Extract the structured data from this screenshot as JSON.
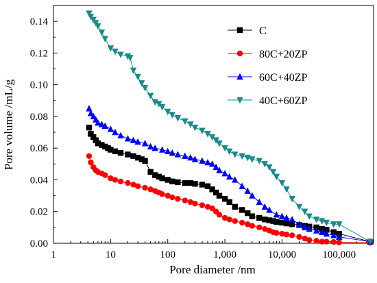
{
  "chart_data": {
    "type": "scatter",
    "title": "",
    "xlabel": "Pore diameter /nm",
    "ylabel": "Pore volume /mL/g",
    "xscale": "log",
    "xlim": [
      1,
      400000
    ],
    "ylim": [
      0,
      0.15
    ],
    "xticks": [
      1,
      10,
      100,
      1000,
      10000,
      100000
    ],
    "xtick_labels": [
      "1",
      "10",
      "100",
      "1,000",
      "10,000",
      "100,000"
    ],
    "yticks": [
      0.0,
      0.02,
      0.04,
      0.06,
      0.08,
      0.1,
      0.12,
      0.14
    ],
    "ytick_labels": [
      "0.00",
      "0.02",
      "0.04",
      "0.06",
      "0.08",
      "0.10",
      "0.12",
      "0.14"
    ],
    "grid": false,
    "legend_position": "top-right",
    "series": [
      {
        "name": "C",
        "color": "#000000",
        "marker": "square",
        "x": [
          4.2,
          4.5,
          5,
          5.5,
          6,
          7,
          8,
          9,
          10,
          12,
          15,
          20,
          25,
          30,
          35,
          40,
          50,
          60,
          70,
          80,
          100,
          120,
          150,
          200,
          250,
          300,
          400,
          500,
          600,
          700,
          800,
          1000,
          1200,
          1500,
          2000,
          2500,
          3000,
          4000,
          5000,
          6000,
          7000,
          8000,
          10000,
          12000,
          15000,
          20000,
          25000,
          30000,
          40000,
          50000,
          60000,
          80000,
          100000,
          350000
        ],
        "y": [
          0.073,
          0.069,
          0.067,
          0.065,
          0.063,
          0.062,
          0.061,
          0.06,
          0.059,
          0.058,
          0.057,
          0.056,
          0.055,
          0.054,
          0.053,
          0.052,
          0.045,
          0.043,
          0.042,
          0.041,
          0.04,
          0.039,
          0.0385,
          0.038,
          0.038,
          0.0375,
          0.037,
          0.036,
          0.034,
          0.032,
          0.03,
          0.028,
          0.026,
          0.023,
          0.021,
          0.019,
          0.017,
          0.016,
          0.015,
          0.0145,
          0.014,
          0.0135,
          0.013,
          0.0125,
          0.012,
          0.0115,
          0.011,
          0.0105,
          0.01,
          0.009,
          0.0085,
          0.007,
          0.006,
          0.001
        ]
      },
      {
        "name": "80C+20ZP",
        "color": "#ff0000",
        "marker": "circle",
        "x": [
          4.2,
          4.5,
          5,
          5.5,
          6,
          7,
          8,
          10,
          12,
          15,
          20,
          25,
          30,
          40,
          50,
          60,
          70,
          80,
          100,
          120,
          150,
          200,
          250,
          300,
          400,
          500,
          600,
          700,
          800,
          1000,
          1200,
          1500,
          2000,
          2500,
          3000,
          4000,
          5000,
          6000,
          7000,
          8000,
          10000,
          12000,
          15000,
          20000,
          25000,
          30000,
          40000,
          50000,
          60000,
          80000,
          100000,
          350000
        ],
        "y": [
          0.055,
          0.051,
          0.048,
          0.046,
          0.045,
          0.044,
          0.043,
          0.041,
          0.04,
          0.039,
          0.038,
          0.037,
          0.036,
          0.035,
          0.034,
          0.033,
          0.032,
          0.031,
          0.03,
          0.029,
          0.028,
          0.027,
          0.026,
          0.025,
          0.024,
          0.023,
          0.022,
          0.02,
          0.018,
          0.016,
          0.015,
          0.014,
          0.013,
          0.012,
          0.011,
          0.01,
          0.009,
          0.008,
          0.007,
          0.0065,
          0.006,
          0.0055,
          0.005,
          0.004,
          0.003,
          0.002,
          0.0015,
          0.001,
          0.001,
          0.0008,
          0.0005,
          0.0003
        ]
      },
      {
        "name": "60C+40ZP",
        "color": "#0000ff",
        "marker": "triangle-up",
        "x": [
          4.2,
          4.5,
          5,
          5.5,
          6,
          7,
          8,
          10,
          12,
          15,
          20,
          25,
          30,
          40,
          50,
          60,
          80,
          100,
          120,
          150,
          200,
          250,
          300,
          400,
          500,
          600,
          700,
          800,
          1000,
          1200,
          1500,
          2000,
          2500,
          3000,
          4000,
          5000,
          6000,
          8000,
          10000,
          12000,
          15000,
          20000,
          25000,
          30000,
          40000,
          50000,
          60000,
          80000,
          100000,
          350000
        ],
        "y": [
          0.085,
          0.082,
          0.08,
          0.078,
          0.076,
          0.075,
          0.074,
          0.072,
          0.07,
          0.068,
          0.066,
          0.065,
          0.064,
          0.063,
          0.061,
          0.06,
          0.059,
          0.058,
          0.057,
          0.056,
          0.055,
          0.054,
          0.053,
          0.052,
          0.051,
          0.05,
          0.048,
          0.046,
          0.044,
          0.042,
          0.04,
          0.036,
          0.033,
          0.03,
          0.026,
          0.023,
          0.021,
          0.018,
          0.017,
          0.016,
          0.015,
          0.012,
          0.01,
          0.009,
          0.008,
          0.007,
          0.006,
          0.005,
          0.004,
          0.001
        ]
      },
      {
        "name": "40C+60ZP",
        "color": "#1a8a8a",
        "marker": "triangle-down",
        "x": [
          4.2,
          4.5,
          5,
          5.5,
          6,
          7,
          8,
          10,
          12,
          15,
          20,
          22,
          25,
          30,
          35,
          40,
          50,
          60,
          70,
          80,
          100,
          120,
          150,
          200,
          250,
          300,
          400,
          500,
          600,
          700,
          800,
          1000,
          1200,
          1500,
          2000,
          2500,
          3000,
          4000,
          5000,
          6000,
          7000,
          8000,
          10000,
          12000,
          15000,
          20000,
          25000,
          30000,
          40000,
          50000,
          60000,
          80000,
          100000,
          350000
        ],
        "y": [
          0.145,
          0.143,
          0.141,
          0.139,
          0.137,
          0.133,
          0.129,
          0.123,
          0.121,
          0.119,
          0.118,
          0.117,
          0.109,
          0.105,
          0.101,
          0.098,
          0.093,
          0.089,
          0.088,
          0.086,
          0.083,
          0.081,
          0.079,
          0.077,
          0.075,
          0.073,
          0.071,
          0.069,
          0.067,
          0.065,
          0.063,
          0.06,
          0.058,
          0.056,
          0.055,
          0.054,
          0.053,
          0.052,
          0.05,
          0.048,
          0.045,
          0.042,
          0.038,
          0.034,
          0.028,
          0.023,
          0.02,
          0.017,
          0.015,
          0.014,
          0.013,
          0.012,
          0.012,
          0.001
        ]
      }
    ]
  }
}
